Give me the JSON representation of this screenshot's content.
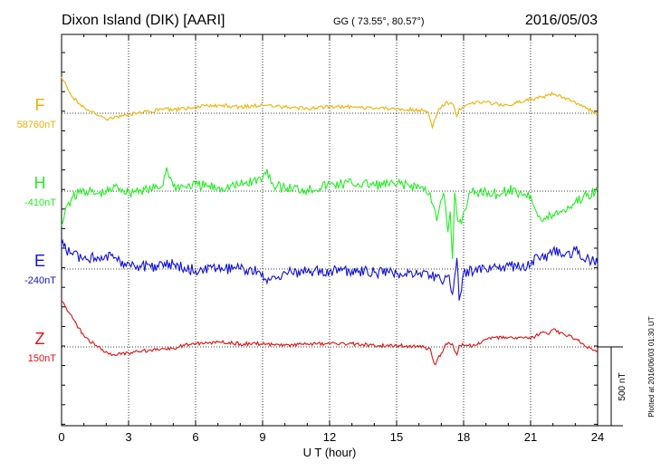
{
  "header": {
    "station": "Dixon Island (DIK)  [AARI]",
    "coords": "GG ( 73.55°,  80.57°)",
    "date": "2016/05/03"
  },
  "plotted_note": "Plotted at 2016/06/03 01:30 UT",
  "colors": {
    "F": "#f0b000",
    "H": "#22ee22",
    "E": "#1010d8",
    "Z": "#e01010"
  },
  "chart_data": {
    "type": "line",
    "xlabel": "U T (hour)",
    "xlim": [
      0,
      24
    ],
    "x_ticks": [
      "0",
      "3",
      "6",
      "9",
      "12",
      "15",
      "18",
      "21",
      "24"
    ],
    "scale_bar": "500 nT",
    "series": [
      {
        "name": "F",
        "baseline_label": "58760nT",
        "baseline": 58760,
        "x": [
          0,
          0.2,
          0.5,
          0.8,
          1.0,
          1.2,
          1.5,
          2.0,
          2.5,
          3.0,
          3.5,
          4.0,
          4.6,
          5.0,
          5.5,
          6.0,
          7.0,
          8.0,
          9.0,
          10.0,
          11.0,
          12.0,
          13.0,
          14.0,
          15.0,
          16.0,
          16.4,
          16.6,
          16.7,
          16.9,
          17.0,
          17.2,
          17.5,
          17.7,
          17.8,
          18.0,
          18.3,
          19.0,
          20.0,
          21.0,
          21.5,
          21.8,
          22.0,
          22.5,
          23.0,
          23.5,
          24.0
        ],
        "y": [
          58990,
          58940,
          58860,
          58820,
          58800,
          58780,
          58760,
          58720,
          58740,
          58750,
          58770,
          58770,
          58790,
          58780,
          58790,
          58800,
          58810,
          58800,
          58810,
          58800,
          58790,
          58800,
          58800,
          58790,
          58790,
          58780,
          58770,
          58670,
          58720,
          58790,
          58800,
          58830,
          58820,
          58740,
          58790,
          58800,
          58820,
          58830,
          58810,
          58850,
          58860,
          58880,
          58880,
          58860,
          58830,
          58790,
          58760
        ]
      },
      {
        "name": "H",
        "baseline_label": "-410nT",
        "baseline": -410,
        "x": [
          0,
          0.2,
          0.5,
          1.0,
          1.5,
          2.0,
          2.5,
          3.0,
          3.5,
          4.0,
          4.5,
          4.7,
          5.0,
          5.5,
          6.0,
          7.0,
          8.0,
          9.0,
          9.2,
          9.5,
          10.0,
          11.0,
          12.0,
          13.0,
          14.0,
          15.0,
          16.0,
          16.5,
          16.8,
          17.1,
          17.3,
          17.4,
          17.5,
          17.6,
          17.7,
          17.9,
          18.0,
          18.3,
          18.6,
          19.0,
          19.5,
          20.0,
          20.5,
          21.0,
          21.5,
          22.0,
          22.5,
          23.0,
          23.5,
          24.0
        ],
        "y": [
          -630,
          -510,
          -450,
          -400,
          -430,
          -420,
          -380,
          -420,
          -400,
          -400,
          -380,
          -260,
          -380,
          -380,
          -370,
          -390,
          -370,
          -330,
          -270,
          -380,
          -390,
          -400,
          -370,
          -360,
          -370,
          -370,
          -380,
          -420,
          -600,
          -420,
          -670,
          -540,
          -840,
          -420,
          -560,
          -620,
          -540,
          -420,
          -420,
          -410,
          -430,
          -400,
          -420,
          -440,
          -600,
          -560,
          -530,
          -480,
          -440,
          -400
        ]
      },
      {
        "name": "E",
        "baseline_label": "-240nT",
        "baseline": -240,
        "x": [
          0,
          0.2,
          0.5,
          1.0,
          1.5,
          2.0,
          2.5,
          3.0,
          3.5,
          4.0,
          4.5,
          5.0,
          5.5,
          6.0,
          7.0,
          8.0,
          9.0,
          9.2,
          10.0,
          11.0,
          12.0,
          13.0,
          14.0,
          15.0,
          16.0,
          16.5,
          16.8,
          17.0,
          17.3,
          17.5,
          17.7,
          17.8,
          18.0,
          18.5,
          19.0,
          20.0,
          21.0,
          21.3,
          21.6,
          22.0,
          22.5,
          23.0,
          23.5,
          24.0
        ],
        "y": [
          -80,
          -120,
          -150,
          -170,
          -170,
          -150,
          -190,
          -200,
          -220,
          -230,
          -200,
          -210,
          -230,
          -250,
          -240,
          -240,
          -260,
          -330,
          -260,
          -260,
          -250,
          -250,
          -260,
          -270,
          -270,
          -280,
          -290,
          -320,
          -280,
          -400,
          -170,
          -440,
          -260,
          -250,
          -240,
          -220,
          -220,
          -150,
          -180,
          -120,
          -160,
          -120,
          -170,
          -210
        ]
      },
      {
        "name": "Z",
        "baseline_label": "150nT",
        "baseline": 150,
        "x": [
          0,
          0.2,
          0.5,
          1.0,
          1.5,
          2.0,
          2.3,
          2.5,
          3.0,
          3.5,
          4.0,
          4.5,
          5.0,
          5.5,
          6.0,
          7.0,
          8.0,
          9.0,
          10.0,
          11.0,
          12.0,
          13.0,
          14.0,
          15.0,
          16.0,
          16.5,
          16.7,
          16.8,
          17.0,
          17.2,
          17.5,
          17.7,
          17.8,
          18.0,
          18.5,
          19.0,
          20.0,
          21.0,
          21.5,
          21.8,
          22.0,
          22.5,
          23.0,
          23.2,
          23.5,
          24.0
        ],
        "y": [
          440,
          400,
          330,
          220,
          160,
          120,
          100,
          100,
          110,
          120,
          130,
          140,
          140,
          160,
          170,
          180,
          170,
          170,
          160,
          170,
          170,
          170,
          160,
          160,
          150,
          140,
          40,
          60,
          110,
          170,
          170,
          100,
          160,
          160,
          160,
          200,
          210,
          200,
          240,
          230,
          260,
          230,
          200,
          180,
          150,
          130
        ]
      }
    ]
  }
}
